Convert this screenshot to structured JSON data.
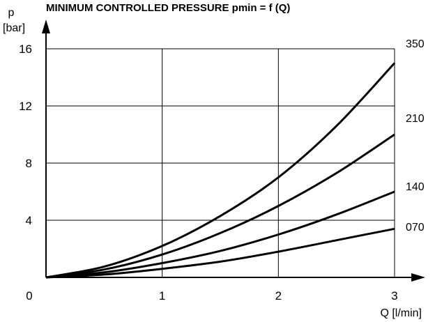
{
  "chart_data": {
    "type": "line",
    "title": "MINIMUM CONTROLLED PRESSURE pmin = f (Q)",
    "ylabel": "p",
    "ylabel_unit": "[bar]",
    "xlabel": "Q [l/min]",
    "origin_label": "0",
    "xlim": [
      0,
      3
    ],
    "ylim": [
      0,
      16
    ],
    "x_ticks": [
      1,
      2,
      3
    ],
    "y_ticks": [
      4,
      8,
      12,
      16
    ],
    "grid": true,
    "series_label_position": "right",
    "x": [
      0,
      0.5,
      1,
      1.5,
      2,
      2.5,
      3
    ],
    "series": [
      {
        "name": "350",
        "values": [
          0,
          0.75,
          2.2,
          4.3,
          7.0,
          10.6,
          15.0
        ]
      },
      {
        "name": "210",
        "values": [
          0,
          0.55,
          1.6,
          3.1,
          5.0,
          7.3,
          10.0
        ]
      },
      {
        "name": "140",
        "values": [
          0,
          0.35,
          1.0,
          1.85,
          3.0,
          4.4,
          6.0
        ]
      },
      {
        "name": "070",
        "values": [
          0,
          0.2,
          0.6,
          1.1,
          1.8,
          2.6,
          3.4
        ]
      }
    ]
  }
}
